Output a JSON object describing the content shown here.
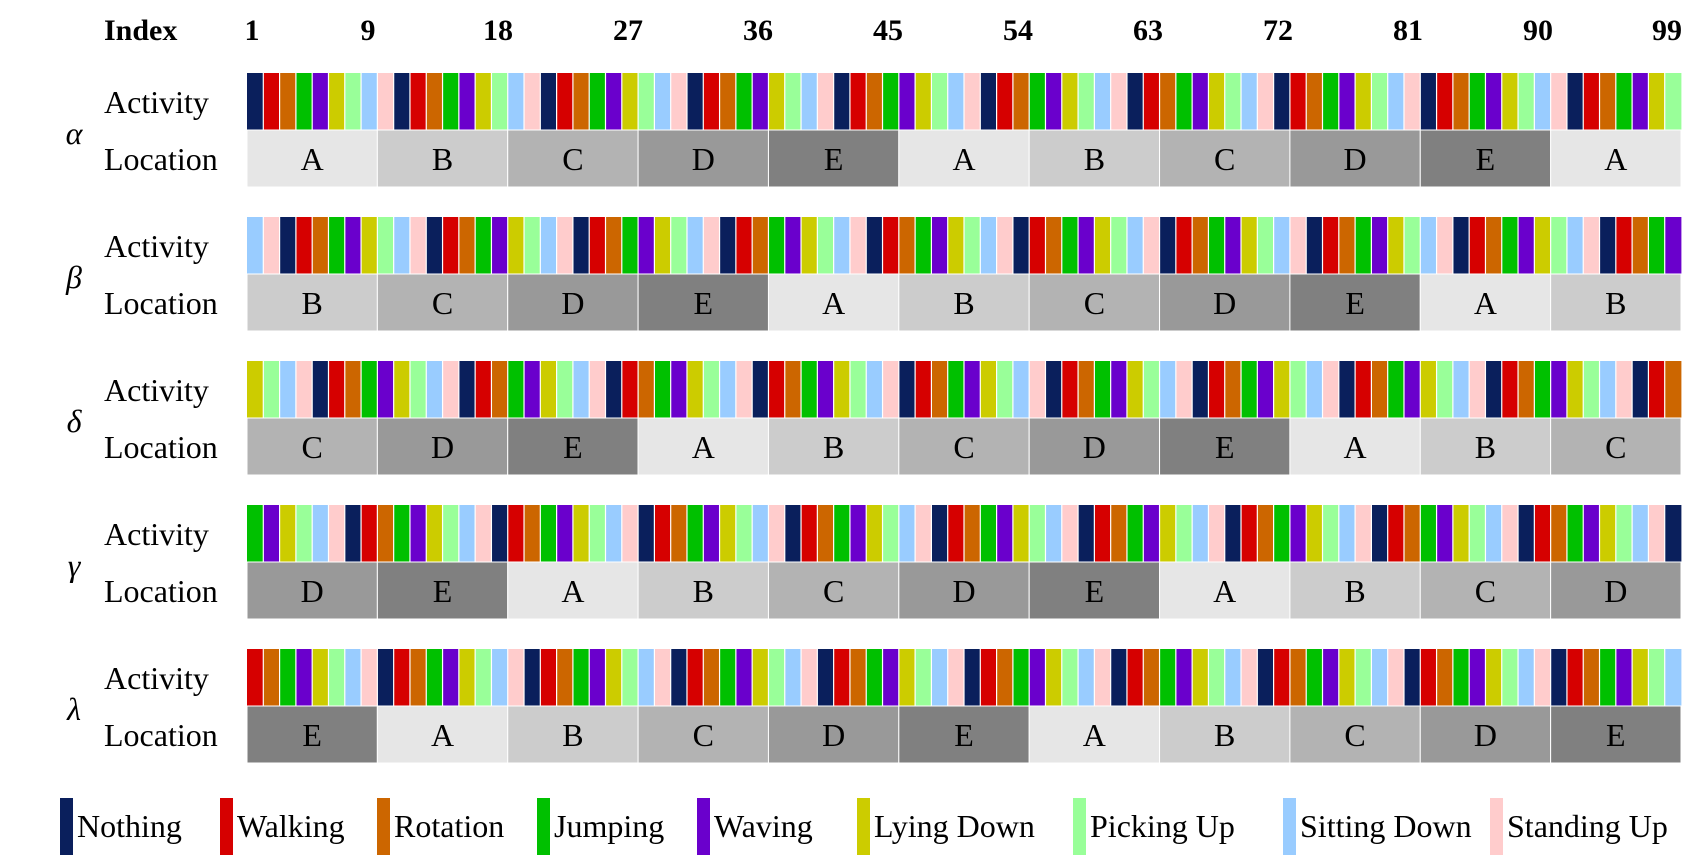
{
  "header": {
    "index_label": "Index",
    "ticks": [
      "1",
      "9",
      "18",
      "27",
      "36",
      "45",
      "54",
      "63",
      "72",
      "81",
      "90",
      "99"
    ]
  },
  "row_labels": {
    "activity": "Activity",
    "location": "Location"
  },
  "legend": [
    {
      "label": "Nothing",
      "color": "#0a1f5c"
    },
    {
      "label": "Walking",
      "color": "#d60000"
    },
    {
      "label": "Rotation",
      "color": "#cc6600"
    },
    {
      "label": "Jumping",
      "color": "#00c000"
    },
    {
      "label": "Waving",
      "color": "#6a00cc"
    },
    {
      "label": "Lying Down",
      "color": "#cccc00"
    },
    {
      "label": "Picking Up",
      "color": "#99ff99"
    },
    {
      "label": "Sitting Down",
      "color": "#99ccff"
    },
    {
      "label": "Standing Up",
      "color": "#ffcccc"
    }
  ],
  "location_colors": {
    "A": "#e6e6e6",
    "B": "#cccccc",
    "C": "#b3b3b3",
    "D": "#999999",
    "E": "#808080"
  },
  "groups": [
    {
      "symbol": "α",
      "locations": [
        "A",
        "B",
        "C",
        "D",
        "E",
        "A",
        "B",
        "C",
        "D",
        "E",
        "A"
      ]
    },
    {
      "symbol": "β",
      "locations": [
        "B",
        "C",
        "D",
        "E",
        "A",
        "B",
        "C",
        "D",
        "E",
        "A",
        "B"
      ]
    },
    {
      "symbol": "δ",
      "locations": [
        "C",
        "D",
        "E",
        "A",
        "B",
        "C",
        "D",
        "E",
        "A",
        "B",
        "C"
      ]
    },
    {
      "symbol": "γ",
      "locations": [
        "D",
        "E",
        "A",
        "B",
        "C",
        "D",
        "E",
        "A",
        "B",
        "C",
        "D"
      ]
    },
    {
      "symbol": "λ",
      "locations": [
        "E",
        "A",
        "B",
        "C",
        "D",
        "E",
        "A",
        "B",
        "C",
        "D",
        "E"
      ]
    }
  ]
}
